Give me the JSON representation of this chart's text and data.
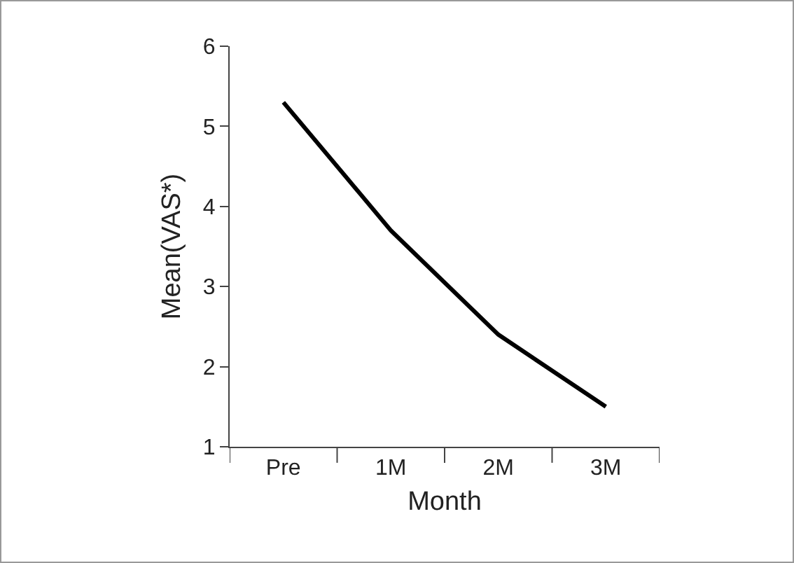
{
  "chart_data": {
    "type": "line",
    "xlabel": "Month",
    "ylabel": "Mean(VAS*)",
    "categories": [
      "Pre",
      "1M",
      "2M",
      "3M"
    ],
    "series": [
      {
        "color": "#000000",
        "values": [
          5.3,
          3.7,
          2.4,
          1.5
        ]
      }
    ],
    "ylim": [
      1,
      6
    ],
    "yticks": [
      1,
      2,
      3,
      4,
      5,
      6
    ],
    "grid": false,
    "marker": "none",
    "line_style": "solid"
  }
}
